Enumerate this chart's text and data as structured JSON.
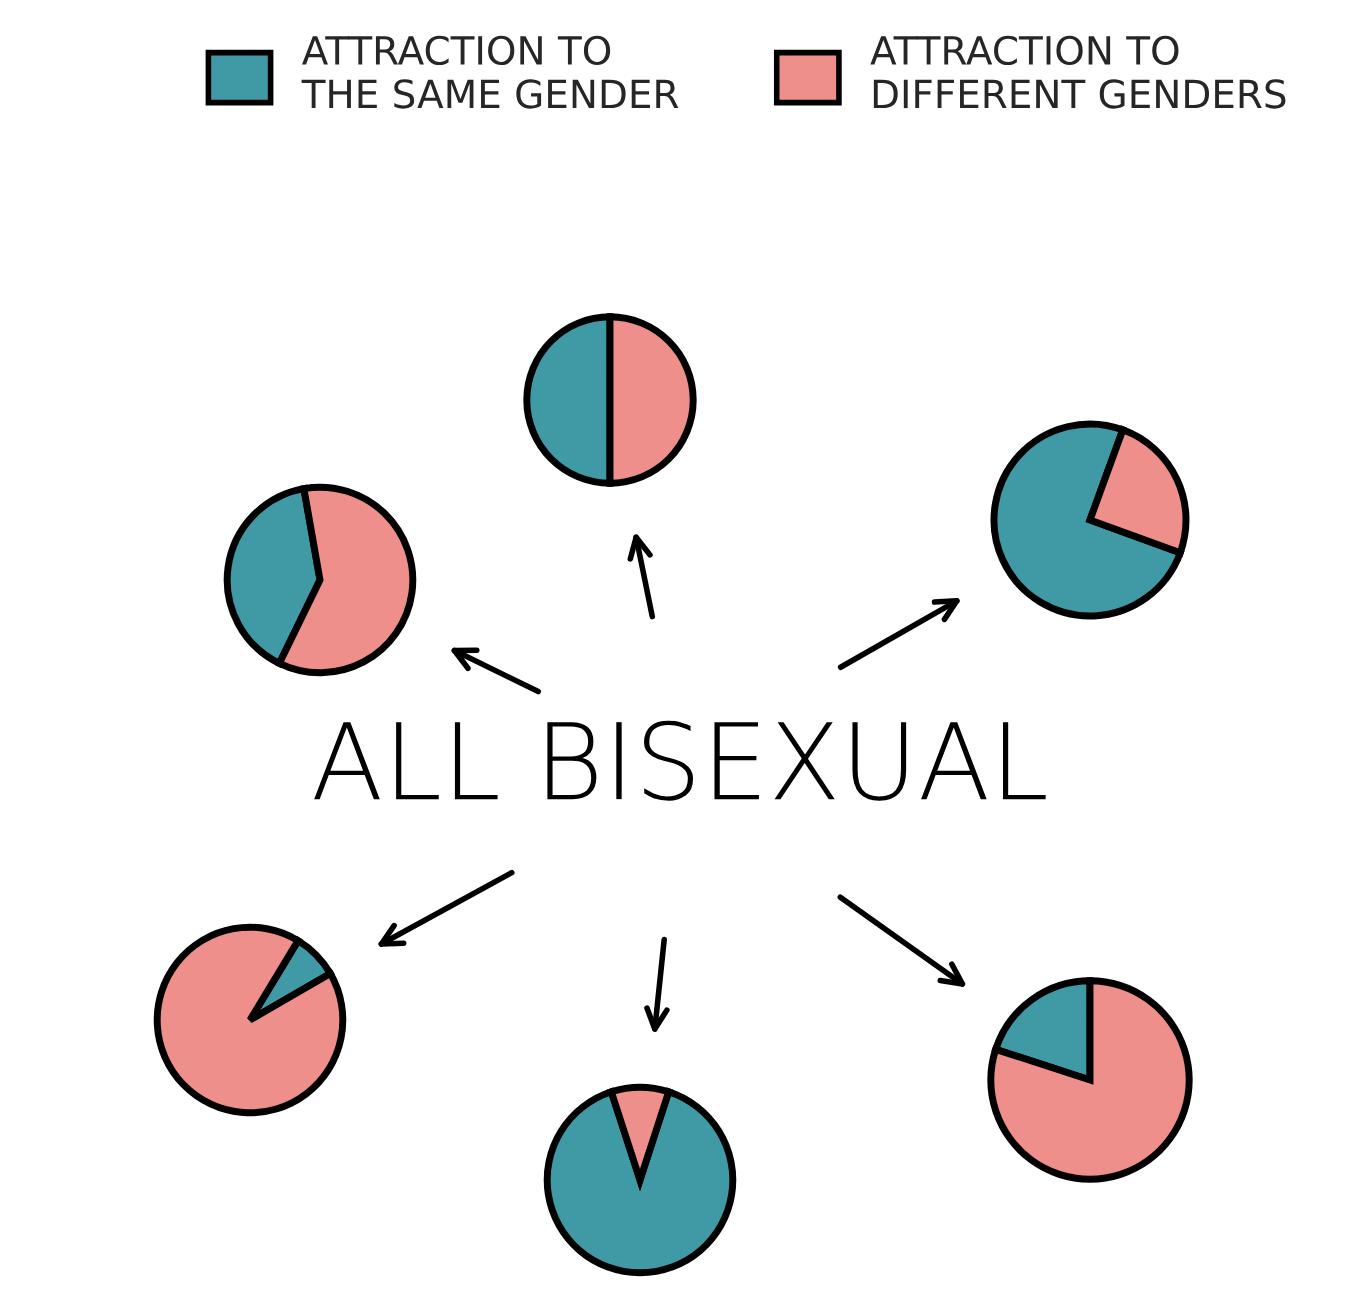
{
  "chart_data": [
    {
      "type": "pie",
      "categories": [
        "ATTRACTION TO\nTHE SAME GENDER",
        "ATTRACTION TO\nDIFFERENT GENDERS"
      ],
      "values": [
        50,
        50
      ],
      "colors": [
        "#3f9aa6",
        "#ee8f8b"
      ],
      "legend": "top"
    },
    {
      "type": "pie",
      "categories": [
        null,
        null
      ],
      "values": [
        40,
        60
      ],
      "colors": [
        "#3f9aa6",
        "#ee8f8b"
      ]
    },
    {
      "type": "pie",
      "categories": [
        null,
        null
      ],
      "values": [
        75,
        25
      ],
      "colors": [
        "#3f9aa6",
        "#ee8f8b"
      ]
    },
    {
      "type": "pie",
      "categories": [
        null,
        null
      ],
      "values": [
        8,
        92
      ],
      "colors": [
        "#3f9aa6",
        "#ee8f8b"
      ]
    },
    {
      "type": "pie",
      "categories": [
        null,
        null
      ],
      "values": [
        90,
        10
      ],
      "colors": [
        "#3f9aa6",
        "#ee8f8b"
      ]
    },
    {
      "type": "pie",
      "categories": [
        null,
        null
      ],
      "values": [
        20,
        80
      ],
      "colors": [
        "#3f9aa6",
        "#ee8f8b"
      ]
    },
    {
      "type": "other",
      "annotations": [
        "ALL BISEXUAL"
      ]
    }
  ]
}
